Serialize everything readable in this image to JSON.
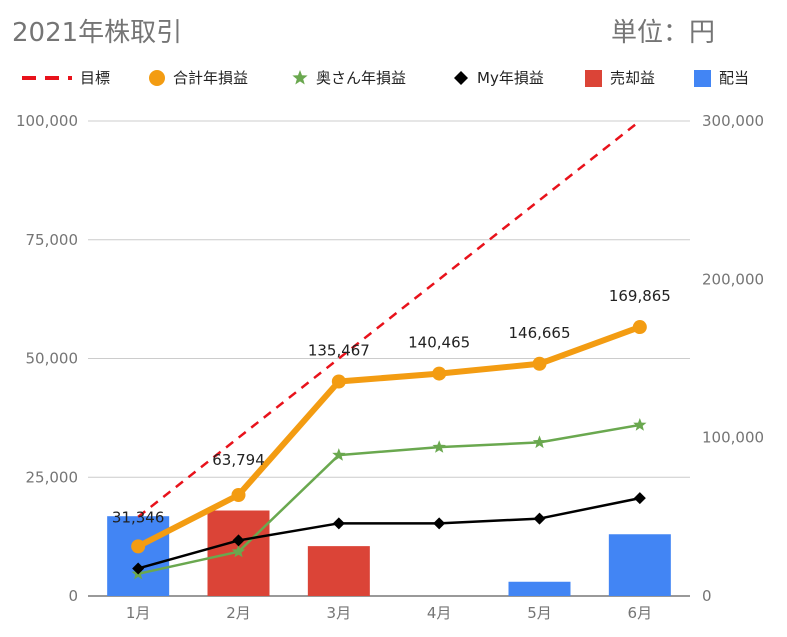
{
  "title": "2021年株取引",
  "unit_label": "単位：円",
  "chart_data": {
    "type": "combo",
    "categories": [
      "1月",
      "2月",
      "3月",
      "4月",
      "5月",
      "6月"
    ],
    "left_axis": {
      "min": 0,
      "max": 100000,
      "ticks": [
        "0",
        "25,000",
        "50,000",
        "75,000",
        "100,000"
      ],
      "tick_values": [
        0,
        25000,
        50000,
        75000,
        100000
      ]
    },
    "right_axis": {
      "min": 0,
      "max": 300000,
      "ticks": [
        "0",
        "100,000",
        "200,000",
        "300,000"
      ],
      "tick_values": [
        0,
        100000,
        200000,
        300000
      ]
    },
    "legend": [
      {
        "key": "target",
        "label": "目標",
        "color": "#e8121b",
        "marker": "dash"
      },
      {
        "key": "total",
        "label": "合計年損益",
        "color": "#f39c12",
        "marker": "circle"
      },
      {
        "key": "wife",
        "label": "奥さん年損益",
        "color": "#6aa84f",
        "marker": "star"
      },
      {
        "key": "my",
        "label": "My年損益",
        "color": "#000000",
        "marker": "diamond"
      },
      {
        "key": "sell",
        "label": "売却益",
        "color": "#db4437",
        "marker": "square"
      },
      {
        "key": "div",
        "label": "配当",
        "color": "#4285f4",
        "marker": "square"
      }
    ],
    "bars": {
      "axis": "left",
      "series": [
        {
          "name": "配当",
          "color": "#4285f4",
          "values": [
            16800,
            0,
            0,
            0,
            3000,
            13000
          ]
        },
        {
          "name": "売却益",
          "color": "#db4437",
          "values": [
            0,
            18000,
            10500,
            0,
            0,
            0
          ]
        }
      ]
    },
    "lines": [
      {
        "name": "目標",
        "axis": "right",
        "color": "#e8121b",
        "dashed": true,
        "width": 2.5,
        "marker": "none",
        "values": [
          50000,
          100000,
          150000,
          200000,
          250000,
          300000
        ]
      },
      {
        "name": "合計年損益",
        "axis": "right",
        "color": "#f39c12",
        "dashed": false,
        "width": 6,
        "marker": "circle",
        "values": [
          31346,
          63794,
          135467,
          140465,
          146665,
          169865
        ],
        "labels": [
          "31,346",
          "63,794",
          "135,467",
          "140,465",
          "146,665",
          "169,865"
        ]
      },
      {
        "name": "奥さん年損益",
        "axis": "right",
        "color": "#6aa84f",
        "dashed": false,
        "width": 2.5,
        "marker": "star",
        "values": [
          14000,
          28000,
          89000,
          94000,
          97000,
          108000
        ]
      },
      {
        "name": "My年損益",
        "axis": "left",
        "color": "#000000",
        "dashed": false,
        "width": 2.5,
        "marker": "diamond",
        "values": [
          5800,
          11700,
          15300,
          15300,
          16300,
          20600
        ]
      }
    ]
  }
}
